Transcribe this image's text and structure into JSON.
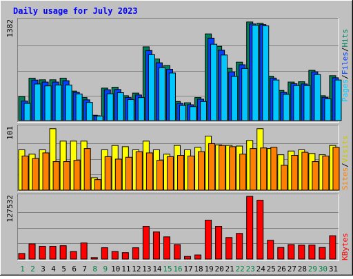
{
  "title": "Daily usage for July 2023",
  "colors": {
    "background": "#c0c0c0",
    "title": "#0000ff",
    "hits": "#00805c",
    "files": "#0040ff",
    "pages": "#00c8ff",
    "visits": "#ffff00",
    "sites": "#ff8000",
    "kbytes": "#ff0000",
    "weekend_label": "#008040"
  },
  "labels": {
    "pages": "Pages",
    "files": "Files",
    "hits": "Hits",
    "sites": "Sites",
    "visits": "Visits",
    "kbytes": "KBytes",
    "sep": "/"
  },
  "chart_data": {
    "type": "bar",
    "title": "Daily usage for July 2023",
    "categories": [
      "1",
      "2",
      "3",
      "4",
      "5",
      "6",
      "7",
      "8",
      "9",
      "10",
      "11",
      "12",
      "13",
      "14",
      "15",
      "16",
      "17",
      "18",
      "19",
      "20",
      "21",
      "22",
      "23",
      "24",
      "25",
      "26",
      "27",
      "28",
      "29",
      "30",
      "31"
    ],
    "weekend_days": [
      "1",
      "2",
      "8",
      "9",
      "15",
      "16",
      "22",
      "23",
      "29",
      "30"
    ],
    "panels": [
      {
        "id": "hits_files_pages",
        "ymax_label": "1382",
        "ylim": [
          0,
          1382
        ],
        "series": [
          {
            "name": "Hits",
            "values": [
              332,
              587,
              564,
              564,
              587,
              408,
              318,
              74,
              449,
              462,
              344,
              380,
              1020,
              852,
              761,
              264,
              246,
              318,
              1199,
              1028,
              723,
              808,
              1364,
              1346,
              614,
              417,
              533,
              537,
              695,
              344,
              621
            ]
          },
          {
            "name": "Files",
            "values": [
              270,
              560,
              533,
              533,
              551,
              390,
              287,
              67,
              426,
              430,
              318,
              354,
              969,
              799,
              710,
              237,
              219,
              296,
              1140,
              973,
              672,
              772,
              1337,
              1328,
              588,
              390,
              510,
              506,
              673,
              322,
              592
            ]
          },
          {
            "name": "Pages",
            "values": [
              238,
              506,
              480,
              492,
              492,
              368,
              251,
              62,
              371,
              386,
              291,
              318,
              911,
              732,
              658,
              210,
              193,
              264,
              1056,
              907,
              611,
              721,
              1319,
              1310,
              561,
              363,
              484,
              484,
              637,
              300,
              561
            ]
          }
        ]
      },
      {
        "id": "sites_visits",
        "ymax_label": "101",
        "ylim": [
          0,
          101
        ],
        "series": [
          {
            "name": "Visits",
            "values": [
              65,
              58,
              65,
              99,
              79,
              79,
              79,
              20,
              65,
              72,
              70,
              65,
              79,
              65,
              58,
              72,
              65,
              69,
              87,
              73,
              72,
              71,
              80,
              99,
              67,
              57,
              63,
              65,
              59,
              57,
              72
            ]
          },
          {
            "name": "Sites",
            "values": [
              55,
              51,
              60,
              46,
              46,
              48,
              67,
              17,
              54,
              50,
              53,
              62,
              60,
              48,
              54,
              56,
              55,
              62,
              75,
              72,
              70,
              58,
              67,
              68,
              69,
              40,
              56,
              61,
              46,
              55,
              69
            ]
          }
        ]
      },
      {
        "id": "kbytes",
        "ymax_label": "127532",
        "ylim": [
          0,
          127532
        ],
        "series": [
          {
            "name": "KBytes",
            "values": [
              11300,
              30800,
              25900,
              25900,
              27100,
              15300,
              32700,
              3000,
              23000,
              15300,
              13000,
              22900,
              66500,
              55100,
              45100,
              29400,
              5300,
              8300,
              79100,
              66500,
              43700,
              52100,
              127532,
              119600,
              38100,
              23500,
              29400,
              28200,
              28300,
              23500,
              47400
            ]
          }
        ]
      }
    ]
  }
}
